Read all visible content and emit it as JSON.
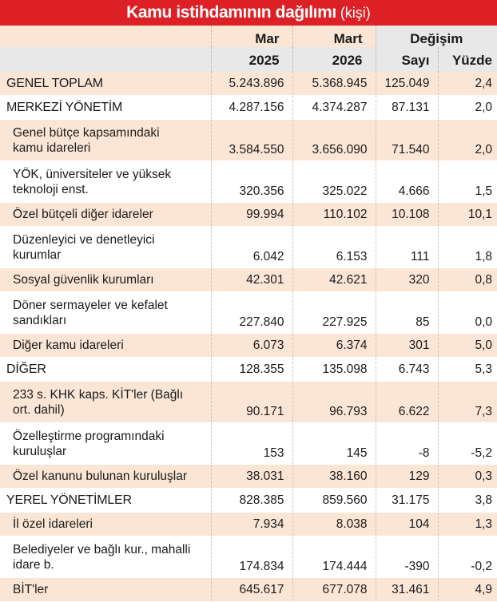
{
  "title": {
    "main": "Kamu istihdamının dağılımı",
    "unit": "(kişi)"
  },
  "colors": {
    "title_bg": "#dd1f26",
    "row_peach": "#fbe6d6",
    "row_white": "#ffffff",
    "header_grey": "#e8e8e8"
  },
  "header": {
    "col_mar_line1": "Mar",
    "col_mar_line2": "2025",
    "col_mart_line1": "Mart",
    "col_mart_line2": "2026",
    "change_group": "Değişim",
    "col_sayi": "Sayı",
    "col_yuzde": "Yüzde"
  },
  "rows": [
    {
      "label": "GENEL TOPLAM",
      "mar2025": "5.243.896",
      "mart2026": "5.368.945",
      "sayi": "125.049",
      "yuzde": "2,4"
    },
    {
      "label": "MERKEZİ YÖNETİM",
      "mar2025": "4.287.156",
      "mart2026": "4.374.287",
      "sayi": "87.131",
      "yuzde": "2,0"
    },
    {
      "label_1": "Genel bütçe kapsamındaki",
      "label_2": "kamu idareleri",
      "mar2025": "3.584.550",
      "mart2026": "3.656.090",
      "sayi": "71.540",
      "yuzde": "2,0"
    },
    {
      "label_1": "YÖK, üniversiteler ve yüksek",
      "label_2": "teknoloji enst.",
      "mar2025": "320.356",
      "mart2026": "325.022",
      "sayi": "4.666",
      "yuzde": "1,5"
    },
    {
      "label": "Özel bütçeli diğer idareler",
      "mar2025": "99.994",
      "mart2026": "110.102",
      "sayi": "10.108",
      "yuzde": "10,1"
    },
    {
      "label_1": "Düzenleyici ve denetleyici",
      "label_2": "kurumlar",
      "mar2025": "6.042",
      "mart2026": "6.153",
      "sayi": "111",
      "yuzde": "1,8"
    },
    {
      "label": "Sosyal güvenlik kurumları",
      "mar2025": "42.301",
      "mart2026": "42.621",
      "sayi": "320",
      "yuzde": "0,8"
    },
    {
      "label_1": "Döner sermayeler ve kefalet",
      "label_2": "sandıkları",
      "mar2025": "227.840",
      "mart2026": "227.925",
      "sayi": "85",
      "yuzde": "0,0"
    },
    {
      "label": "Diğer kamu idareleri",
      "mar2025": "6.073",
      "mart2026": "6.374",
      "sayi": "301",
      "yuzde": "5,0"
    },
    {
      "label": "DİĞER",
      "mar2025": "128.355",
      "mart2026": "135.098",
      "sayi": "6.743",
      "yuzde": "5,3"
    },
    {
      "label_1": "233 s. KHK kaps. KİT'ler (Bağlı",
      "label_2": "ort. dahil)",
      "mar2025": "90.171",
      "mart2026": "96.793",
      "sayi": "6.622",
      "yuzde": "7,3"
    },
    {
      "label_1": "Özelleştirme programındaki",
      "label_2": "kuruluşlar",
      "mar2025": "153",
      "mart2026": "145",
      "sayi": "-8",
      "yuzde": "-5,2"
    },
    {
      "label": "Özel kanunu bulunan kuruluşlar",
      "mar2025": "38.031",
      "mart2026": "38.160",
      "sayi": "129",
      "yuzde": "0,3"
    },
    {
      "label": "YEREL YÖNETİMLER",
      "mar2025": "828.385",
      "mart2026": "859.560",
      "sayi": "31.175",
      "yuzde": "3,8"
    },
    {
      "label": "İl özel idareleri",
      "mar2025": "7.934",
      "mart2026": "8.038",
      "sayi": "104",
      "yuzde": "1,3"
    },
    {
      "label_1": "Belediyeler ve bağlı kur., mahalli",
      "label_2": "idare b.",
      "mar2025": "174.834",
      "mart2026": "174.444",
      "sayi": "-390",
      "yuzde": "-0,2"
    },
    {
      "label": "BİT'ler",
      "mar2025": "645.617",
      "mart2026": "677.078",
      "sayi": "31.461",
      "yuzde": "4,9"
    }
  ]
}
